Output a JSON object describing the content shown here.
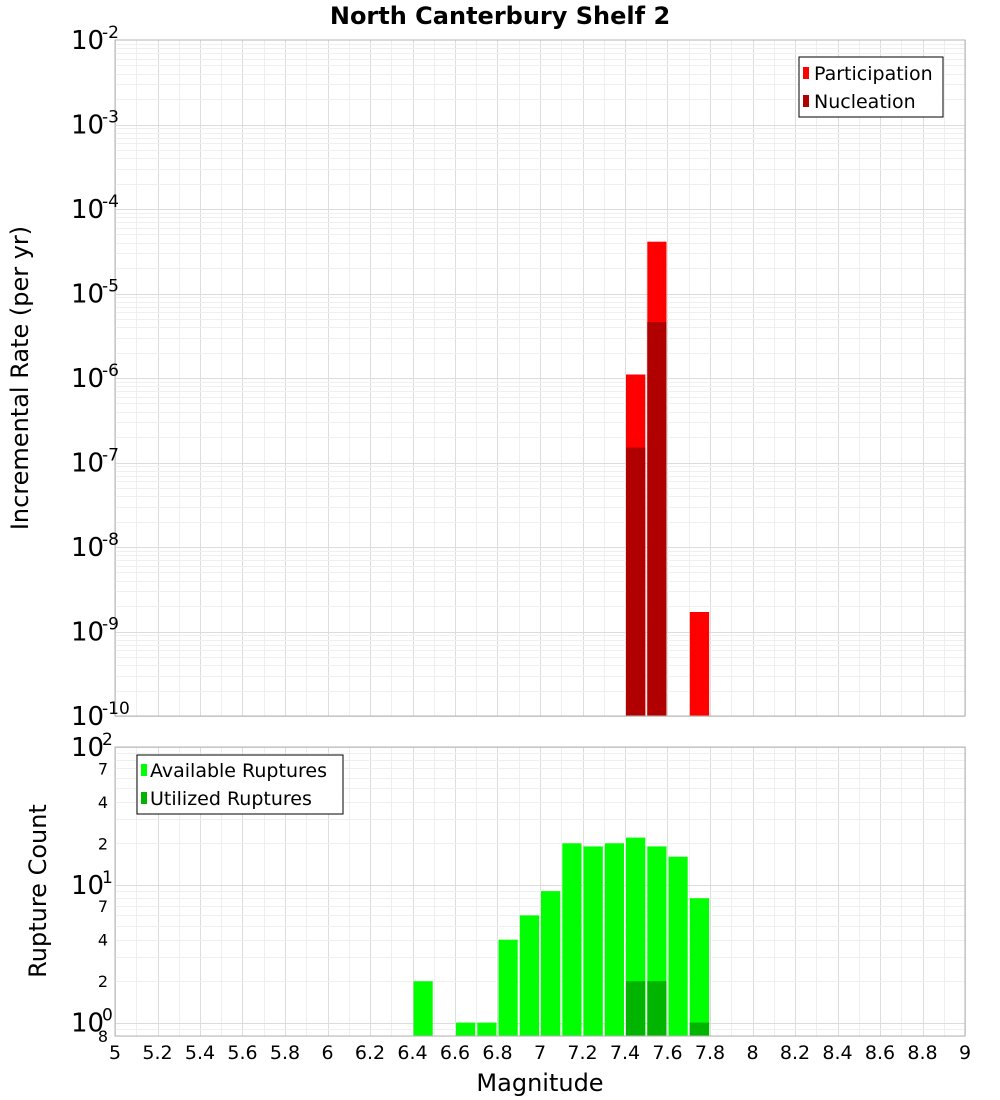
{
  "chart_data": [
    {
      "type": "bar",
      "title": "North Canterbury Shelf 2",
      "xlabel": "",
      "ylabel": "Incremental Rate (per yr)",
      "y_scale": "log",
      "ylim": [
        1e-10,
        0.01
      ],
      "xlim": [
        5,
        9
      ],
      "bin_width": 0.1,
      "y_tick_exponents": [
        "-10",
        "-9",
        "-8",
        "-7",
        "-6",
        "-5",
        "-4",
        "-3",
        "-2"
      ],
      "legend": {
        "position": "top-right",
        "entries": [
          "Participation",
          "Nucleation"
        ]
      },
      "series": [
        {
          "name": "Participation",
          "color": "#ff0000",
          "x": [
            7.45,
            7.55,
            7.75
          ],
          "values": [
            1.1e-06,
            4.1e-05,
            1.7e-09
          ]
        },
        {
          "name": "Nucleation",
          "color": "#b00000",
          "x": [
            7.45,
            7.55
          ],
          "values": [
            1.5e-07,
            4.6e-06
          ]
        }
      ]
    },
    {
      "type": "bar",
      "title": "",
      "xlabel": "Magnitude",
      "ylabel": "Rupture Count",
      "y_scale": "log",
      "ylim": [
        0.8,
        100
      ],
      "xlim": [
        5,
        9
      ],
      "bin_width": 0.1,
      "x_tick_labels": [
        "5",
        "5.2",
        "5.4",
        "5.6",
        "5.8",
        "6",
        "6.2",
        "6.4",
        "6.6",
        "6.8",
        "7",
        "7.2",
        "7.4",
        "7.6",
        "7.8",
        "8",
        "8.2",
        "8.4",
        "8.6",
        "8.8",
        "9"
      ],
      "y_tick_labels": {
        "major_base": "10",
        "major_exponents": [
          "0",
          "1",
          "2"
        ],
        "minor": [
          "2",
          "4",
          "7",
          "2",
          "4",
          "7",
          "8"
        ]
      },
      "legend": {
        "position": "top-left",
        "entries": [
          "Available Ruptures",
          "Utilized Ruptures"
        ]
      },
      "series": [
        {
          "name": "Available Ruptures",
          "color": "#00ff00",
          "x": [
            6.45,
            6.65,
            6.75,
            6.85,
            6.95,
            7.05,
            7.15,
            7.25,
            7.35,
            7.45,
            7.55,
            7.65,
            7.75
          ],
          "values": [
            2,
            1,
            1,
            4,
            6,
            9,
            20,
            19,
            20,
            22,
            19,
            16,
            8
          ]
        },
        {
          "name": "Utilized Ruptures",
          "color": "#00b400",
          "x": [
            7.45,
            7.55,
            7.75
          ],
          "values": [
            2,
            2,
            1
          ]
        }
      ]
    }
  ]
}
